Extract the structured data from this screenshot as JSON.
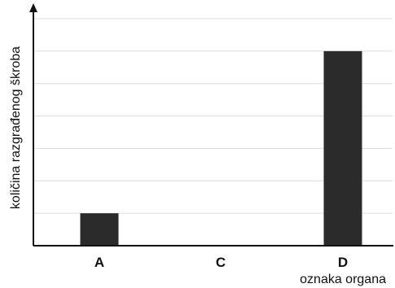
{
  "chart_data": {
    "type": "bar",
    "categories": [
      "A",
      "C",
      "D"
    ],
    "values": [
      1,
      0,
      6
    ],
    "ylabel": "količina razgrađenog škroba",
    "xlabel": "oznaka organa",
    "ylim": [
      0,
      7
    ],
    "grid": true,
    "y_tick_labels_shown": false,
    "colors": {
      "bar": "#2b2b2b",
      "grid": "#dcdcdc",
      "axis": "#111111"
    }
  }
}
